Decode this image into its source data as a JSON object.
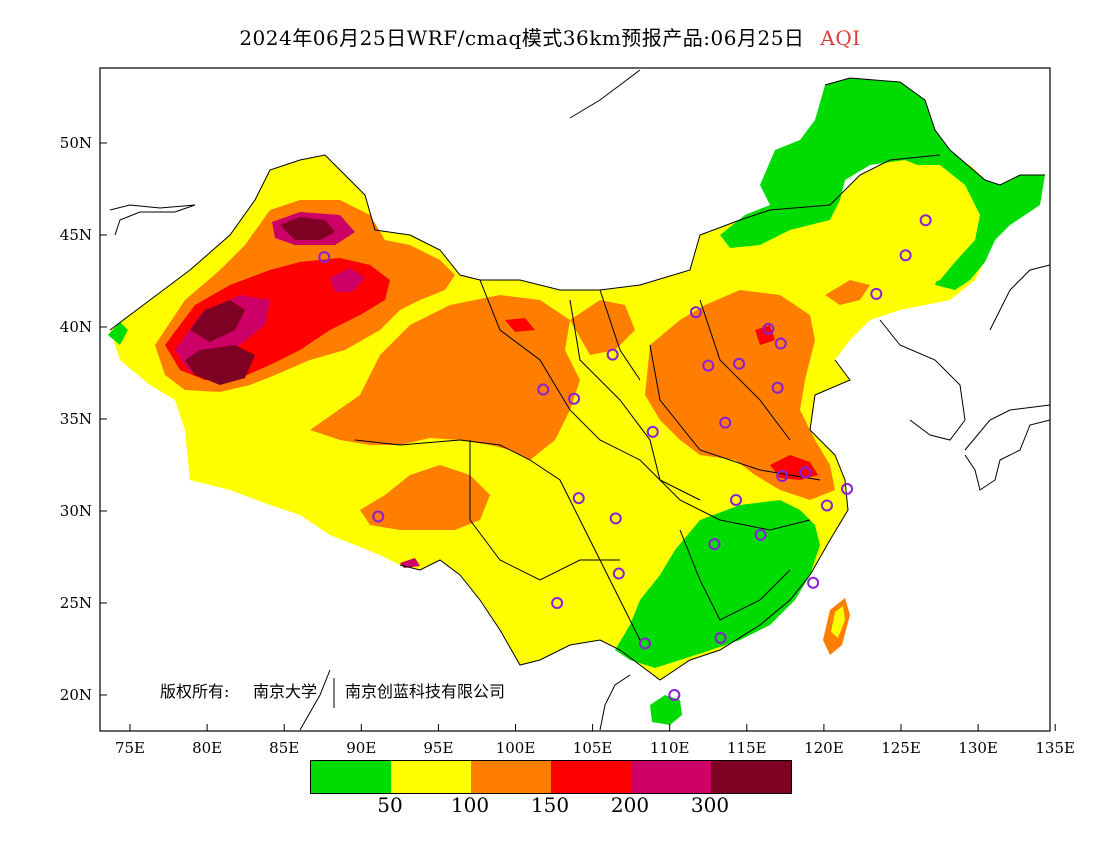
{
  "title": {
    "main": "2024年06月25日WRF/cmaq模式36km预报产品:06月25日",
    "variable": "AQI",
    "variable_color": "#e03c3c"
  },
  "map": {
    "lat_ticks": [
      "50N",
      "45N",
      "40N",
      "35N",
      "30N",
      "25N",
      "20N"
    ],
    "lon_ticks": [
      "75E",
      "80E",
      "85E",
      "90E",
      "95E",
      "100E",
      "105E",
      "110E",
      "115E",
      "120E",
      "125E",
      "130E",
      "135E"
    ],
    "copyright_label": "版权所有:",
    "copyright_owner1": "南京大学",
    "copyright_owner2": "南京创蓝科技有限公司"
  },
  "colorbar": {
    "colors": [
      "#00dc00",
      "#ffff00",
      "#ff7e00",
      "#ff0000",
      "#cc0066",
      "#7e0023"
    ],
    "labels": [
      "50",
      "100",
      "150",
      "200",
      "300"
    ]
  },
  "stations": {
    "marker_color": "#8a1fd8",
    "points": [
      [
        87.6,
        43.8
      ],
      [
        91.1,
        29.7
      ],
      [
        101.8,
        36.6
      ],
      [
        103.8,
        36.1
      ],
      [
        106.3,
        38.5
      ],
      [
        104.1,
        30.7
      ],
      [
        106.5,
        29.6
      ],
      [
        106.7,
        26.6
      ],
      [
        102.7,
        25.0
      ],
      [
        108.4,
        22.8
      ],
      [
        110.3,
        20.0
      ],
      [
        111.7,
        40.8
      ],
      [
        112.5,
        37.9
      ],
      [
        114.5,
        38.0
      ],
      [
        113.6,
        34.8
      ],
      [
        117.2,
        39.1
      ],
      [
        116.4,
        39.9
      ],
      [
        117.0,
        36.7
      ],
      [
        108.9,
        34.3
      ],
      [
        117.3,
        31.9
      ],
      [
        114.3,
        30.6
      ],
      [
        112.9,
        28.2
      ],
      [
        115.9,
        28.7
      ],
      [
        113.3,
        23.1
      ],
      [
        119.3,
        26.1
      ],
      [
        120.2,
        30.3
      ],
      [
        118.8,
        32.1
      ],
      [
        121.5,
        31.2
      ],
      [
        123.4,
        41.8
      ],
      [
        125.3,
        43.9
      ],
      [
        126.6,
        45.8
      ]
    ]
  }
}
